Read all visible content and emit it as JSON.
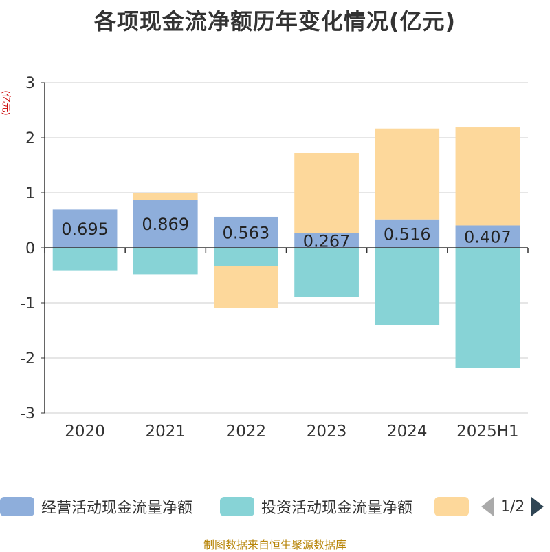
{
  "title": "各项现金流净额历年变化情况(亿元)",
  "footer": "制图数据来自恒生聚源数据库",
  "chart_data": {
    "type": "bar",
    "stacked": true,
    "title": "各项现金流净额历年变化情况(亿元)",
    "ylabel": "(亿元)",
    "categories": [
      "2020",
      "2021",
      "2022",
      "2023",
      "2024",
      "2025H1"
    ],
    "ylim": [
      -3,
      3
    ],
    "yticks": [
      3,
      2,
      1,
      0,
      -1,
      -2,
      -3
    ],
    "grid": true,
    "series": [
      {
        "name": "经营活动现金流量净额",
        "color": "#8eaedb",
        "values": [
          0.695,
          0.869,
          0.563,
          0.267,
          0.516,
          0.407
        ],
        "labels": [
          "0.695",
          "0.869",
          "0.563",
          "0.267",
          "0.516",
          "0.407"
        ]
      },
      {
        "name": "投资活动现金流量净额",
        "color": "#87d3d6",
        "values": [
          -0.42,
          -0.48,
          -0.33,
          -0.9,
          -1.4,
          -2.18
        ]
      },
      {
        "name": "",
        "color": "#fdd89b",
        "values": [
          0.0,
          0.12,
          -0.77,
          1.45,
          1.65,
          1.78
        ]
      }
    ],
    "legend_position": "bottom"
  },
  "legend": {
    "items": [
      {
        "label": "经营活动现金流量净额",
        "color": "#8eaedb"
      },
      {
        "label": "投资活动现金流量净额",
        "color": "#87d3d6"
      },
      {
        "label": "",
        "color": "#fdd89b"
      }
    ],
    "page": "1/2"
  }
}
